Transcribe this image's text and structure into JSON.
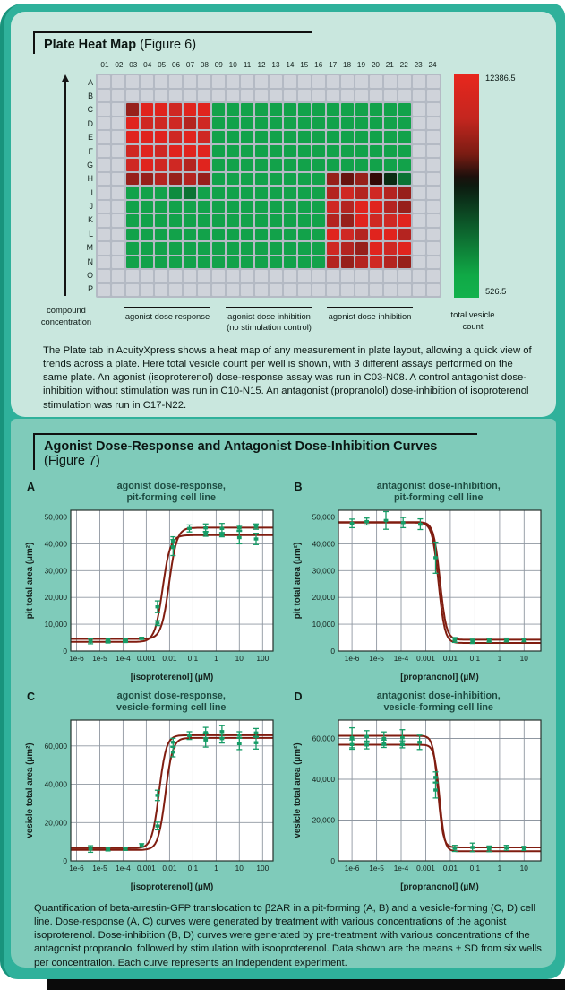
{
  "colors": {
    "frame_teal": "#2fb19b",
    "frame_edge": "#18937c",
    "card_mint": "#c9e7de",
    "section_seafoam": "#7fcbba",
    "curve": "#801d10",
    "marker": "#169c66",
    "gridline": "#8f97a1",
    "plot_bg": "#ffffff",
    "text_dark": "#0b1814"
  },
  "figure6": {
    "title": "Plate Heat Map",
    "figure_label": "(Figure 6)",
    "description": "The Plate tab in AcuityXpress shows a heat map of any measurement in plate layout, allowing a quick view of trends across a plate. Here total vesicle count per well is shown, with 3 different assays performed on the same plate. An agonist (isoproterenol) dose-response assay was run in C03-N08. A control antagonist dose-inhibition without stimulation was run in C10-N15. An antagonist (propranolol) dose-inhibition of isoproterenol stimulation was run in C17-N22.",
    "heatmap": {
      "col_labels": [
        "01",
        "02",
        "03",
        "04",
        "05",
        "06",
        "07",
        "08",
        "09",
        "10",
        "11",
        "12",
        "13",
        "14",
        "15",
        "16",
        "17",
        "18",
        "19",
        "20",
        "21",
        "22",
        "23",
        "24"
      ],
      "row_labels": [
        "A",
        "B",
        "C",
        "D",
        "E",
        "F",
        "G",
        "H",
        "I",
        "J",
        "K",
        "L",
        "M",
        "N",
        "O",
        "P"
      ],
      "palette": {
        ".": "#cfd3da",
        "g": "#12a24a",
        "G": "#0e8c3f",
        "d": "#0b7334",
        "D": "#075426",
        "k": "#0a2c13",
        "r": "#e0241e",
        "R": "#cf2823",
        "m": "#b42420",
        "M": "#97201b",
        "x": "#671310",
        "X": "#330806"
      },
      "grid": [
        "........................",
        "........................",
        "..MrrRrrgggggggggggggg..",
        "..rRRRmRgggggggggggggg..",
        "..rrrRrRgggggggggggggg..",
        "..RrRrrrgggggggggggggg..",
        "..RrRRmrgggggggggggggg..",
        "..MMmMmMggggggggMxMXkd..",
        "..gggGdgggggggggmRmRmM..",
        "..ggggggggggggggRmrrmM..",
        "..ggggggggggggggmMrRRr..",
        "..ggggggggggggggrRmrrm..",
        "..ggggggggggggggRmMrRr..",
        "..ggggggggggggggmMmRmM..",
        "........................",
        "........................"
      ],
      "y_axis_label": [
        "compound",
        "concentration"
      ],
      "regions": [
        {
          "label": "agonist dose response",
          "sub": ""
        },
        {
          "label": "agonist dose inhibition",
          "sub": "(no stimulation control)"
        },
        {
          "label": "agonist dose inhibition",
          "sub": ""
        }
      ],
      "scale": {
        "max": "12386.5",
        "min": "526.5",
        "caption": [
          "total vesicle",
          "count"
        ],
        "gradient": [
          "#e8271e 0%",
          "#c4261f 20%",
          "#7a1c13 36%",
          "#1c100c 46%",
          "#0d1a0f 50%",
          "#0b3019 56%",
          "#0d6a30 72%",
          "#10a946 90%",
          "#12b24d 100%"
        ]
      }
    }
  },
  "figure7": {
    "title": "Agonist Dose-Response and Antagonist Dose-Inhibition Curves",
    "figure_label": "(Figure 7)",
    "caption": "Quantification of beta-arrestin-GFP translocation to β2AR in a pit-forming (A, B) and a vesicle-forming (C, D) cell line. Dose-response (A, C) curves were generated by treatment with various concentrations of the agonist isoproterenol. Dose-inhibition (B, D) curves were generated by pre-treatment with various concentrations of the antagonist propranolol followed by stimulation with isooproterenol. Data shown are the means ± SD from six wells per concentration. Each curve represents an independent experiment."
  },
  "chart_data": [
    {
      "type": "scatter",
      "panel": "A",
      "title": [
        "agonist dose-response,",
        "pit-forming cell line"
      ],
      "xlabel": "[isoproterenol] (μM)",
      "ylabel": "pit total area (μm²)",
      "x_scale": "log",
      "xlim_log": [
        -6.25,
        2.45
      ],
      "ylim": [
        0,
        52500
      ],
      "xticks": [
        {
          "log": -6,
          "label": "1e-6"
        },
        {
          "log": -5,
          "label": "1e-5"
        },
        {
          "log": -4,
          "label": "1e-4"
        },
        {
          "log": -3,
          "label": "0.001"
        },
        {
          "log": -2,
          "label": "0.01"
        },
        {
          "log": -1,
          "label": "0.1"
        },
        {
          "log": 0,
          "label": "1"
        },
        {
          "log": 1,
          "label": "10"
        },
        {
          "log": 2,
          "label": "100"
        }
      ],
      "yticks": [
        {
          "v": 0,
          "label": "0"
        },
        {
          "v": 10000,
          "label": "10,000"
        },
        {
          "v": 20000,
          "label": "20,000"
        },
        {
          "v": 30000,
          "label": "30,000"
        },
        {
          "v": 40000,
          "label": "40,000"
        },
        {
          "v": 50000,
          "label": "50,000"
        }
      ],
      "curves": [
        {
          "bottom": 4500,
          "top": 46000,
          "logec50": -2.02,
          "hill": 2.6
        },
        {
          "bottom": 3400,
          "top": 43200,
          "logec50": -2.3,
          "hill": 2.6
        }
      ],
      "points": [
        [
          -5.4,
          3600,
          900
        ],
        [
          -4.65,
          4100,
          600
        ],
        [
          -4.65,
          3400,
          400
        ],
        [
          -3.9,
          4150,
          500
        ],
        [
          -3.9,
          3550,
          350
        ],
        [
          -3.2,
          4700,
          400
        ],
        [
          -2.52,
          16500,
          2200
        ],
        [
          -2.52,
          10400,
          900
        ],
        [
          -1.85,
          40900,
          1700
        ],
        [
          -1.85,
          38600,
          3000
        ],
        [
          -1.15,
          45700,
          1300
        ],
        [
          -0.45,
          45900,
          1500
        ],
        [
          -0.45,
          43700,
          900
        ],
        [
          0.25,
          45700,
          1900
        ],
        [
          0.25,
          43400,
          800
        ],
        [
          1.0,
          45900,
          900
        ],
        [
          1.0,
          42300,
          2300
        ],
        [
          1.72,
          46400,
          1000
        ],
        [
          1.72,
          41800,
          2100
        ]
      ]
    },
    {
      "type": "scatter",
      "panel": "B",
      "title": [
        "antagonist dose-inhibition,",
        "pit-forming cell line"
      ],
      "xlabel": "[propranonol] (μM)",
      "ylabel": "pit total area (μm²)",
      "x_scale": "log",
      "xlim_log": [
        -6.55,
        1.68
      ],
      "ylim": [
        0,
        52500
      ],
      "xticks": [
        {
          "log": -6,
          "label": "1e-6"
        },
        {
          "log": -5,
          "label": "1e-5"
        },
        {
          "log": -4,
          "label": "1e-4"
        },
        {
          "log": -3,
          "label": "0.001"
        },
        {
          "log": -2,
          "label": "0.01"
        },
        {
          "log": -1,
          "label": "0.1"
        },
        {
          "log": 0,
          "label": "1"
        },
        {
          "log": 1,
          "label": "10"
        }
      ],
      "yticks": [
        {
          "v": 0,
          "label": "0"
        },
        {
          "v": 10000,
          "label": "10,000"
        },
        {
          "v": 20000,
          "label": "20,000"
        },
        {
          "v": 30000,
          "label": "30,000"
        },
        {
          "v": 40000,
          "label": "40,000"
        },
        {
          "v": 50000,
          "label": "50,000"
        }
      ],
      "curves": [
        {
          "bottom": 4200,
          "top": 48100,
          "logec50": -2.42,
          "hill": -3.4
        },
        {
          "bottom": 3000,
          "top": 47900,
          "logec50": -2.48,
          "hill": -3.4
        }
      ],
      "points": [
        [
          -6.0,
          47600,
          1600
        ],
        [
          -5.4,
          48300,
          1300
        ],
        [
          -4.62,
          48700,
          3300
        ],
        [
          -3.92,
          47900,
          1900
        ],
        [
          -3.22,
          47300,
          2000
        ],
        [
          -2.6,
          34800,
          5800
        ],
        [
          -1.82,
          4100,
          900
        ],
        [
          -1.1,
          3600,
          800
        ],
        [
          -0.42,
          4000,
          700
        ],
        [
          0.28,
          4100,
          700
        ],
        [
          1.0,
          4050,
          600
        ]
      ]
    },
    {
      "type": "scatter",
      "panel": "C",
      "title": [
        "agonist dose-response,",
        "vesicle-forming cell line"
      ],
      "xlabel": "[isoproterenol] (μM)",
      "ylabel": "vesicle total area (μm²)",
      "x_scale": "log",
      "xlim_log": [
        -6.25,
        2.45
      ],
      "ylim": [
        0,
        73500
      ],
      "xticks": [
        {
          "log": -6,
          "label": "1e-6"
        },
        {
          "log": -5,
          "label": "1e-5"
        },
        {
          "log": -4,
          "label": "1e-4"
        },
        {
          "log": -3,
          "label": "0.001"
        },
        {
          "log": -2,
          "label": "0.01"
        },
        {
          "log": -1,
          "label": "0.1"
        },
        {
          "log": 0,
          "label": "1"
        },
        {
          "log": 1,
          "label": "10"
        },
        {
          "log": 2,
          "label": "100"
        }
      ],
      "yticks": [
        {
          "v": 0,
          "label": "0"
        },
        {
          "v": 20000,
          "label": "20,000"
        },
        {
          "v": 40000,
          "label": "40,000"
        },
        {
          "v": 60000,
          "label": "60,000"
        }
      ],
      "curves": [
        {
          "bottom": 6600,
          "top": 65600,
          "logec50": -2.45,
          "hill": 2.8
        },
        {
          "bottom": 5700,
          "top": 64200,
          "logec50": -2.18,
          "hill": 2.8
        }
      ],
      "points": [
        [
          -5.4,
          6200,
          1700
        ],
        [
          -4.65,
          6100,
          900
        ],
        [
          -3.9,
          6200,
          700
        ],
        [
          -3.2,
          8100,
          900
        ],
        [
          -2.52,
          34200,
          2700
        ],
        [
          -2.52,
          18200,
          2000
        ],
        [
          -1.85,
          61900,
          2100
        ],
        [
          -1.85,
          56800,
          2500
        ],
        [
          -1.15,
          65400,
          2000
        ],
        [
          -0.45,
          67000,
          2700
        ],
        [
          -0.45,
          63100,
          3700
        ],
        [
          0.25,
          67500,
          3100
        ],
        [
          0.25,
          63800,
          2300
        ],
        [
          1.0,
          65700,
          1700
        ],
        [
          1.0,
          61200,
          3100
        ],
        [
          1.72,
          66800,
          2300
        ],
        [
          1.72,
          61700,
          3300
        ]
      ]
    },
    {
      "type": "scatter",
      "panel": "D",
      "title": [
        "antagonist dose-inhibition,",
        "vesicle-forming cell line"
      ],
      "xlabel": "[propranonol] (μM)",
      "ylabel": "vesicle total area (μm²)",
      "x_scale": "log",
      "xlim_log": [
        -6.55,
        1.68
      ],
      "ylim": [
        0,
        69000
      ],
      "xticks": [
        {
          "log": -6,
          "label": "1e-6"
        },
        {
          "log": -5,
          "label": "1e-5"
        },
        {
          "log": -4,
          "label": "1e-4"
        },
        {
          "log": -3,
          "label": "0.001"
        },
        {
          "log": -2,
          "label": "0.01"
        },
        {
          "log": -1,
          "label": "0.1"
        },
        {
          "log": 0,
          "label": "1"
        },
        {
          "log": 1,
          "label": "10"
        }
      ],
      "yticks": [
        {
          "v": 0,
          "label": "0"
        },
        {
          "v": 20000,
          "label": "20,000"
        },
        {
          "v": 40000,
          "label": "40,000"
        },
        {
          "v": 60000,
          "label": "60,000"
        }
      ],
      "curves": [
        {
          "bottom": 6600,
          "top": 61300,
          "logec50": -2.5,
          "hill": -4.2
        },
        {
          "bottom": 4700,
          "top": 56900,
          "logec50": -2.44,
          "hill": -4.2
        }
      ],
      "points": [
        [
          -6.0,
          60300,
          4900
        ],
        [
          -6.0,
          57000,
          2300
        ],
        [
          -5.4,
          60900,
          2900
        ],
        [
          -5.4,
          56800,
          1900
        ],
        [
          -4.7,
          59900,
          3300
        ],
        [
          -4.7,
          57400,
          1800
        ],
        [
          -3.95,
          60400,
          3900
        ],
        [
          -3.95,
          57100,
          1700
        ],
        [
          -3.25,
          58100,
          3500
        ],
        [
          -2.6,
          40900,
          2700
        ],
        [
          -2.6,
          34700,
          3900
        ],
        [
          -1.82,
          6100,
          1500
        ],
        [
          -1.1,
          6600,
          2100
        ],
        [
          -0.42,
          5900,
          1400
        ],
        [
          0.28,
          6400,
          1200
        ],
        [
          1.0,
          6100,
          1000
        ]
      ]
    }
  ]
}
